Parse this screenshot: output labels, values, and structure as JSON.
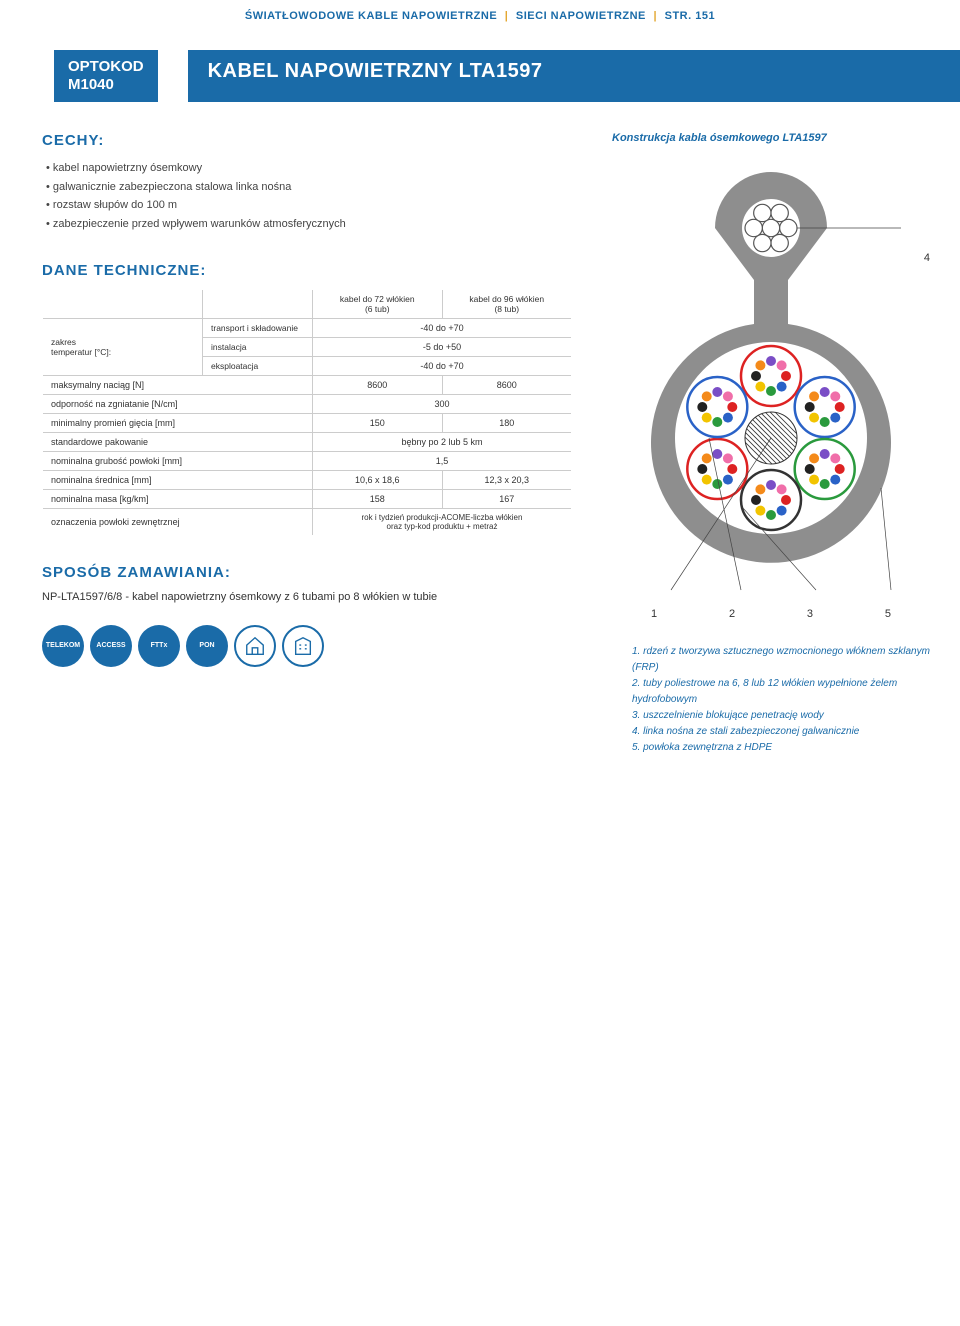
{
  "breadcrumb": {
    "a": "ŚWIATŁOWODOWE KABLE NAPOWIETRZNE",
    "b": "SIECI NAPOWIETRZNE",
    "c": "STR. 151"
  },
  "optokod": {
    "line1": "OPTOKOD",
    "line2": "M1040"
  },
  "title": "KABEL NAPOWIETRZNY LTA1597",
  "features_h": "CECHY:",
  "features": [
    "kabel napowietrzny ósemkowy",
    "galwanicznie zabezpieczona stalowa linka nośna",
    "rozstaw słupów do 100 m",
    "zabezpieczenie przed wpływem warunków atmosferycznych"
  ],
  "tech_h": "DANE TECHNICZNE:",
  "table": {
    "head1": "kabel do 72 włókien\n(6 tub)",
    "head2": "kabel do 96 włókien\n(8 tub)",
    "ranges_label": "zakres\ntemperatur [°C]:",
    "r1l": "transport i składowanie",
    "r1v": "-40 do +70",
    "r2l": "instalacja",
    "r2v": "-5 do +50",
    "r3l": "eksploatacja",
    "r3v": "-40 do +70",
    "r4l": "maksymalny naciąg [N]",
    "r4a": "8600",
    "r4b": "8600",
    "r5l": "odporność na zgniatanie [N/cm]",
    "r5v": "300",
    "r6l": "minimalny promień gięcia [mm]",
    "r6a": "150",
    "r6b": "180",
    "r7l": "standardowe pakowanie",
    "r7v": "bębny po 2 lub 5 km",
    "r8l": "nominalna grubość powłoki [mm]",
    "r8v": "1,5",
    "r9l": "nominalna średnica [mm]",
    "r9a": "10,6 x 18,6",
    "r9b": "12,3 x 20,3",
    "r10l": "nominalna masa [kg/km]",
    "r10a": "158",
    "r10b": "167",
    "r11l": "oznaczenia powłoki zewnętrznej",
    "r11v": "rok i tydzień produkcji-ACOME-liczba włókien\noraz typ-kod produktu + metraż"
  },
  "order_h": "SPOSÓB ZAMAWIANIA:",
  "order_text": "NP-LTA1597/6/8 - kabel napowietrzny ósemkowy z 6 tubami po 8 włókien w tubie",
  "badges": [
    "TELEKOM",
    "ACCESS",
    "FTTx",
    "PON"
  ],
  "diagram_caption": "Konstrukcja kabla ósemkowego LTA1597",
  "diagram": {
    "messenger_outer": "#8e8e8e",
    "messenger_core_stroke": "#555",
    "messenger_core_fill": "#fff",
    "cable_outer": "#8e8e8e",
    "cable_inner": "#fff",
    "tube_stroke": "#333",
    "tube_fill": "#fff",
    "tube_colors": [
      "#d22",
      "#2a62c7",
      "#2a9a3d",
      "#333333",
      "#d22",
      "#2a62c7"
    ],
    "fiber_colors": [
      "#d22",
      "#2a62c7",
      "#2a9a3d",
      "#f2c400",
      "#222",
      "#f48a1a",
      "#7a4ec6",
      "#f06ea9"
    ],
    "center_hatched": true,
    "callout_line": "#444",
    "num4": "4",
    "legend_nums": [
      "1",
      "2",
      "3",
      "5"
    ]
  },
  "legend": [
    "1. rdzeń z tworzywa sztucznego wzmocnionego włóknem szklanym (FRP)",
    "2. tuby poliestrowe na 6, 8 lub 12 włókien wypełnione żelem hydrofobowym",
    "3. uszczelnienie blokujące penetrację wody",
    "4. linka nośna ze stali zabezpieczonej galwanicznie",
    "5. powłoka zewnętrzna z HDPE"
  ]
}
